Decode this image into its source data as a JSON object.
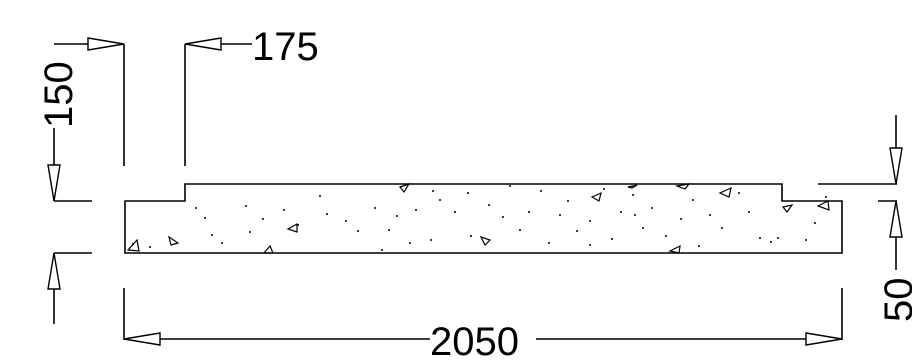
{
  "dimensions": {
    "width_label": "2050",
    "left_height_label": "150",
    "step_label": "175",
    "right_height_label": "50"
  },
  "drawing": {
    "hatch": "concrete-aggregate",
    "line_color": "#000000",
    "background": "#ffffff"
  }
}
